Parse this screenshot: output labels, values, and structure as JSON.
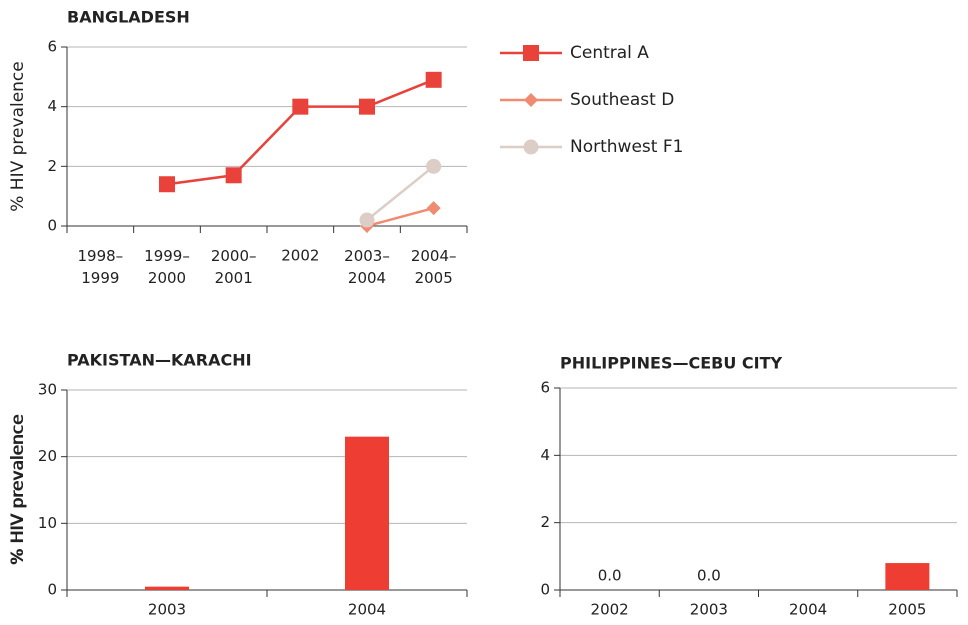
{
  "chart_data": [
    {
      "type": "line",
      "title": "BANGLADESH",
      "ylabel": "% HIV prevalence",
      "categories": [
        "1998–\n1999",
        "1999–\n2000",
        "2000–\n2001",
        "2002",
        "2003–\n2004",
        "2004–\n2005"
      ],
      "series": [
        {
          "name": "Central A",
          "color": "#e8423a",
          "marker": "square",
          "values": [
            null,
            1.4,
            1.7,
            4,
            4,
            4.9
          ]
        },
        {
          "name": "Southeast D",
          "color": "#f08a70",
          "marker": "diamond",
          "values": [
            null,
            null,
            null,
            null,
            0,
            0.6
          ]
        },
        {
          "name": "Northwest F1",
          "color": "#dccdc6",
          "marker": "circle",
          "values": [
            null,
            null,
            null,
            null,
            0.2,
            2
          ]
        }
      ],
      "ylim": [
        0,
        6
      ],
      "yticks": [
        0,
        2,
        4,
        6
      ],
      "grid": true
    },
    {
      "type": "bar",
      "title": "PAKISTAN—KARACHI",
      "ylabel": "% HIV prevalence",
      "categories": [
        "2003",
        "2004"
      ],
      "values": [
        0.5,
        23
      ],
      "color": "#ee3d33",
      "ylim": [
        0,
        30
      ],
      "yticks": [
        0,
        10,
        20,
        30
      ],
      "grid": true
    },
    {
      "type": "bar",
      "title": "PHILIPPINES—CEBU CITY",
      "ylabel": "% HIV prevalence",
      "categories": [
        "2002",
        "2003",
        "2004",
        "2005"
      ],
      "values": [
        0,
        0,
        null,
        0.8
      ],
      "value_labels": [
        "0.0",
        "0.0",
        null,
        null
      ],
      "color": "#ee3d33",
      "ylim": [
        0,
        6
      ],
      "yticks": [
        0,
        2,
        4,
        6
      ],
      "grid": true
    }
  ]
}
